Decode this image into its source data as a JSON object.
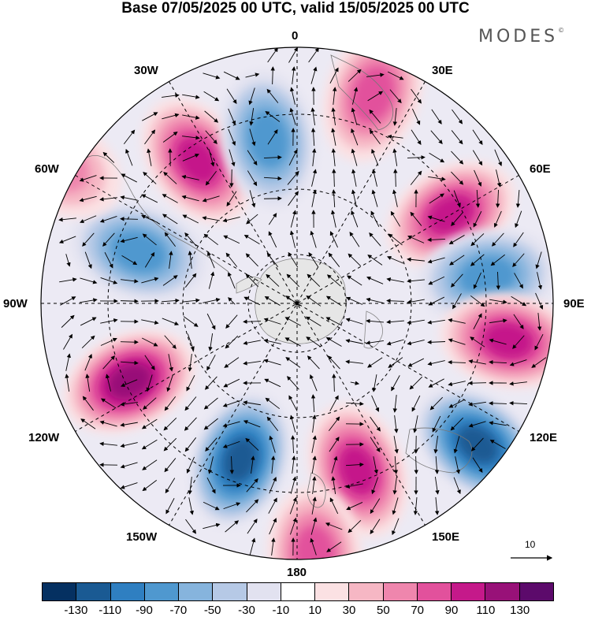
{
  "title": "Base 07/05/2025 00 UTC, valid 15/05/2025 00 UTC",
  "logo": "MODES",
  "logo_mark": "©",
  "longitude_labels": {
    "top": "0",
    "e30": "30E",
    "e60": "60E",
    "e90": "90E",
    "e120": "120E",
    "e150": "150E",
    "bottom": "180",
    "w150": "150W",
    "w120": "120W",
    "w90": "90W",
    "w60": "60W",
    "w30": "30W"
  },
  "vector_reference_label": "10",
  "colorbar": {
    "colors": [
      "#053061",
      "#1a5a93",
      "#2f7fc1",
      "#4f98cf",
      "#86b4dd",
      "#b6c9e6",
      "#e2e2f0",
      "#ffffff",
      "#fbe1e3",
      "#f6b7c4",
      "#ef86ad",
      "#e2519c",
      "#c5198a",
      "#981178",
      "#5c0a6b"
    ],
    "tick_labels": [
      "-130",
      "-110",
      "-90",
      "-70",
      "-50",
      "-30",
      "-10",
      "10",
      "30",
      "50",
      "70",
      "90",
      "110",
      "130"
    ]
  },
  "anomaly_centers": [
    {
      "lon": 20,
      "lat_from_pole": 60,
      "value": 60
    },
    {
      "lon": 60,
      "lat_from_pole": 48,
      "value": 75
    },
    {
      "lon": 82,
      "lat_from_pole": 52,
      "value": -55
    },
    {
      "lon": 100,
      "lat_from_pole": 58,
      "value": 80
    },
    {
      "lon": 128,
      "lat_from_pole": 62,
      "value": -95
    },
    {
      "lon": 160,
      "lat_from_pole": 48,
      "value": 85
    },
    {
      "lon": 176,
      "lat_from_pole": 68,
      "value": 55
    },
    {
      "lon": 200,
      "lat_from_pole": 45,
      "value": -105
    },
    {
      "lon": 245,
      "lat_from_pole": 50,
      "value": 105
    },
    {
      "lon": 288,
      "lat_from_pole": 45,
      "value": -65
    },
    {
      "lon": 300,
      "lat_from_pole": 75,
      "value": 40
    },
    {
      "lon": 325,
      "lat_from_pole": 47,
      "value": 75
    },
    {
      "lon": 350,
      "lat_from_pole": 45,
      "value": -65
    }
  ]
}
